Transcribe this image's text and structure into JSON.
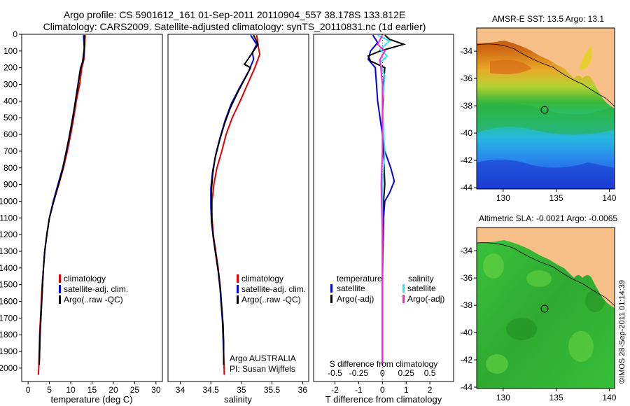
{
  "title_line1": "Argo profile: CS 5901612_161 01-Sep-2011 20110904_557 38.178S 133.812E",
  "title_line2": "Climatology: CARS2009. Satellite-adjusted climatology: synTS_20110831.nc (1d earlier)",
  "credit": "©IMOS 28-Sep-2011 01:14:39",
  "colors": {
    "climatology": "#e00000",
    "satellite": "#0000e0",
    "argo": "#000000",
    "sat_salinity": "#20e8ff",
    "argo_salinity": "#ff20d8",
    "land": "#f7c089"
  },
  "chart_data": [
    {
      "type": "line",
      "panel": "temperature",
      "xlabel": "temperature (deg C)",
      "xlim": [
        -1.5,
        31.5
      ],
      "xticks": [
        0,
        5,
        10,
        15,
        20,
        25,
        30
      ],
      "ylim": [
        0,
        2080
      ],
      "yticks": [
        0,
        100,
        200,
        300,
        400,
        500,
        600,
        700,
        800,
        900,
        1000,
        1100,
        1200,
        1300,
        1400,
        1500,
        1600,
        1700,
        1800,
        1900,
        2000
      ],
      "y_reversed": true,
      "legend": [
        "climatology",
        "satellite-adj. clim.",
        "Argo(..raw -QC)"
      ],
      "legend_position": "lower-center",
      "series": [
        {
          "name": "climatology",
          "color": "#e00000",
          "points": [
            [
              13.4,
              5
            ],
            [
              13.3,
              50
            ],
            [
              13.2,
              100
            ],
            [
              13.1,
              150
            ],
            [
              12.6,
              200
            ],
            [
              12.1,
              300
            ],
            [
              11.3,
              400
            ],
            [
              10.7,
              500
            ],
            [
              10.0,
              600
            ],
            [
              9.2,
              700
            ],
            [
              8.3,
              800
            ],
            [
              7.2,
              900
            ],
            [
              6.0,
              1000
            ],
            [
              5.0,
              1100
            ],
            [
              4.4,
              1200
            ],
            [
              3.9,
              1300
            ],
            [
              3.6,
              1400
            ],
            [
              3.3,
              1500
            ],
            [
              3.1,
              1600
            ],
            [
              2.9,
              1700
            ],
            [
              2.7,
              1800
            ],
            [
              2.6,
              1900
            ],
            [
              2.5,
              2000
            ],
            [
              2.4,
              2040
            ]
          ]
        },
        {
          "name": "satellite-adj. clim.",
          "color": "#0000e0",
          "points": [
            [
              13.0,
              5
            ],
            [
              13.1,
              50
            ],
            [
              13.2,
              100
            ],
            [
              12.9,
              160
            ],
            [
              12.3,
              200
            ],
            [
              11.7,
              300
            ],
            [
              11.1,
              400
            ],
            [
              10.5,
              500
            ],
            [
              9.8,
              600
            ],
            [
              9.0,
              700
            ],
            [
              8.1,
              800
            ],
            [
              7.0,
              900
            ],
            [
              5.9,
              1000
            ],
            [
              5.0,
              1100
            ],
            [
              4.4,
              1200
            ],
            [
              3.9,
              1300
            ],
            [
              3.6,
              1400
            ],
            [
              3.4,
              1500
            ],
            [
              3.2,
              1600
            ],
            [
              3.0,
              1700
            ],
            [
              2.8,
              1800
            ],
            [
              2.7,
              1900
            ],
            [
              2.6,
              1980
            ]
          ]
        },
        {
          "name": "Argo(..raw -QC)",
          "color": "#000000",
          "points": [
            [
              13.2,
              5
            ],
            [
              13.3,
              60
            ],
            [
              13.0,
              120
            ],
            [
              12.8,
              160
            ],
            [
              12.2,
              220
            ],
            [
              11.6,
              320
            ],
            [
              11.0,
              420
            ],
            [
              10.3,
              520
            ],
            [
              9.6,
              620
            ],
            [
              8.8,
              720
            ],
            [
              8.0,
              820
            ],
            [
              6.9,
              920
            ],
            [
              5.8,
              1020
            ],
            [
              5.0,
              1100
            ],
            [
              4.4,
              1200
            ],
            [
              3.9,
              1300
            ],
            [
              3.6,
              1400
            ],
            [
              3.4,
              1500
            ],
            [
              3.2,
              1600
            ],
            [
              3.0,
              1700
            ],
            [
              2.8,
              1800
            ],
            [
              2.7,
              1900
            ],
            [
              2.6,
              1980
            ]
          ]
        }
      ]
    },
    {
      "type": "line",
      "panel": "salinity",
      "xlabel": "salinity",
      "xlim": [
        33.8,
        36.1
      ],
      "xticks": [
        34,
        34.5,
        35,
        35.5,
        36
      ],
      "ylim": [
        0,
        2080
      ],
      "y_reversed": true,
      "legend": [
        "climatology",
        "satellite-adj. clim.",
        "Argo(..raw -QC)"
      ],
      "legend_position": "lower-right",
      "annotation": [
        "Argo AUSTRALIA",
        "PI: Susan Wijffels"
      ],
      "series": [
        {
          "name": "climatology",
          "color": "#e00000",
          "points": [
            [
              35.25,
              5
            ],
            [
              35.28,
              80
            ],
            [
              35.3,
              120
            ],
            [
              35.22,
              200
            ],
            [
              35.1,
              300
            ],
            [
              34.98,
              400
            ],
            [
              34.85,
              500
            ],
            [
              34.75,
              600
            ],
            [
              34.68,
              700
            ],
            [
              34.6,
              800
            ],
            [
              34.55,
              900
            ],
            [
              34.52,
              1000
            ],
            [
              34.52,
              1100
            ],
            [
              34.54,
              1200
            ],
            [
              34.58,
              1300
            ],
            [
              34.62,
              1400
            ],
            [
              34.65,
              1500
            ],
            [
              34.67,
              1600
            ],
            [
              34.69,
              1700
            ],
            [
              34.7,
              1800
            ],
            [
              34.71,
              1900
            ],
            [
              34.72,
              2040
            ]
          ]
        },
        {
          "name": "satellite-adj. clim.",
          "color": "#0000e0",
          "points": [
            [
              35.15,
              5
            ],
            [
              35.25,
              60
            ],
            [
              35.18,
              110
            ],
            [
              35.2,
              150
            ],
            [
              35.12,
              220
            ],
            [
              34.97,
              320
            ],
            [
              34.83,
              420
            ],
            [
              34.73,
              520
            ],
            [
              34.65,
              620
            ],
            [
              34.58,
              720
            ],
            [
              34.53,
              820
            ],
            [
              34.5,
              920
            ],
            [
              34.5,
              1020
            ],
            [
              34.51,
              1120
            ],
            [
              34.54,
              1220
            ],
            [
              34.58,
              1320
            ],
            [
              34.62,
              1420
            ],
            [
              34.65,
              1520
            ],
            [
              34.67,
              1620
            ],
            [
              34.69,
              1720
            ],
            [
              34.7,
              1820
            ],
            [
              34.71,
              1920
            ],
            [
              34.71,
              1980
            ]
          ]
        },
        {
          "name": "Argo(..raw -QC)",
          "color": "#000000",
          "points": [
            [
              35.2,
              5
            ],
            [
              35.27,
              60
            ],
            [
              35.2,
              100
            ],
            [
              35.05,
              180
            ],
            [
              35.15,
              200
            ],
            [
              35.08,
              250
            ],
            [
              34.95,
              340
            ],
            [
              34.82,
              440
            ],
            [
              34.72,
              540
            ],
            [
              34.64,
              640
            ],
            [
              34.57,
              740
            ],
            [
              34.53,
              840
            ],
            [
              34.51,
              940
            ],
            [
              34.51,
              1040
            ],
            [
              34.52,
              1140
            ],
            [
              34.55,
              1240
            ],
            [
              34.59,
              1340
            ],
            [
              34.63,
              1440
            ],
            [
              34.66,
              1540
            ],
            [
              34.68,
              1640
            ],
            [
              34.7,
              1740
            ],
            [
              34.71,
              1840
            ],
            [
              34.71,
              1940
            ],
            [
              34.71,
              1980
            ]
          ]
        }
      ]
    },
    {
      "type": "line",
      "panel": "difference",
      "xlabel_bottom": "T difference from climatology",
      "xlabel_top": "S difference from climatology",
      "xlim": [
        -2.9,
        3.0
      ],
      "xticks_bottom": [
        -2,
        -1,
        0,
        1,
        2
      ],
      "xticks_top": [
        {
          "label": "-0.5",
          "pos": -2
        },
        {
          "label": "-0.25",
          "pos": -1
        },
        {
          "label": "0",
          "pos": 0
        },
        {
          "label": "0.25",
          "pos": 1
        },
        {
          "label": "0.5",
          "pos": 2
        }
      ],
      "ylim": [
        0,
        2080
      ],
      "y_reversed": true,
      "legend_headers": [
        "temperature",
        "salinity"
      ],
      "legend": [
        "satellite",
        "Argo(-adj)",
        "satellite",
        "Argo(-adj)"
      ],
      "series": [
        {
          "name": "satellite",
          "quantity": "temperature",
          "color": "#0000e0",
          "points": [
            [
              -0.4,
              5
            ],
            [
              -0.2,
              50
            ],
            [
              -0.5,
              100
            ],
            [
              -0.6,
              150
            ],
            [
              -0.3,
              200
            ],
            [
              -0.25,
              300
            ],
            [
              -0.2,
              400
            ],
            [
              -0.1,
              500
            ],
            [
              0.0,
              600
            ],
            [
              0.1,
              700
            ],
            [
              0.35,
              800
            ],
            [
              0.5,
              880
            ],
            [
              0.3,
              950
            ],
            [
              0.1,
              1000
            ],
            [
              0.05,
              1100
            ],
            [
              0.02,
              1300
            ],
            [
              0.0,
              1500
            ],
            [
              0.0,
              1700
            ],
            [
              0.0,
              1980
            ]
          ]
        },
        {
          "name": "Argo(-adj)",
          "quantity": "temperature",
          "color": "#000000",
          "points": [
            [
              0.1,
              5
            ],
            [
              0.3,
              30
            ],
            [
              0.9,
              60
            ],
            [
              0.4,
              80
            ],
            [
              -0.1,
              100
            ],
            [
              -0.6,
              130
            ],
            [
              -0.5,
              160
            ],
            [
              0.1,
              200
            ],
            [
              0.05,
              300
            ],
            [
              0.0,
              500
            ],
            [
              0.05,
              700
            ],
            [
              0.1,
              900
            ],
            [
              0.0,
              1100
            ],
            [
              0.0,
              1500
            ],
            [
              0.0,
              1980
            ]
          ]
        },
        {
          "name": "satellite",
          "quantity": "salinity",
          "color": "#20e8ff",
          "points": [
            [
              -0.2,
              5
            ],
            [
              0.3,
              40
            ],
            [
              -0.1,
              90
            ],
            [
              0.2,
              130
            ],
            [
              -0.1,
              170
            ],
            [
              0.1,
              250
            ],
            [
              0.0,
              400
            ],
            [
              0.05,
              600
            ],
            [
              0.1,
              700
            ],
            [
              0.0,
              900
            ],
            [
              0.0,
              1200
            ],
            [
              0.0,
              1600
            ],
            [
              0.0,
              1980
            ]
          ]
        },
        {
          "name": "Argo(-adj)",
          "quantity": "salinity",
          "color": "#ff20d8",
          "points": [
            [
              0.0,
              5
            ],
            [
              -0.2,
              60
            ],
            [
              0.1,
              100
            ],
            [
              -0.1,
              150
            ],
            [
              0.0,
              300
            ],
            [
              0.0,
              700
            ],
            [
              -0.05,
              900
            ],
            [
              0.0,
              1200
            ],
            [
              0.0,
              1600
            ],
            [
              0.0,
              1980
            ]
          ]
        }
      ]
    },
    {
      "type": "heatmap",
      "panel": "sst_map",
      "title": "AMSR-E SST: 13.5 Argo: 13.1",
      "xlim": [
        127.5,
        140.5
      ],
      "ylim": [
        -44.1,
        -32.3
      ],
      "xticks": [
        130,
        135,
        140
      ],
      "yticks": [
        -34,
        -36,
        -38,
        -40,
        -42,
        -44
      ],
      "marker": {
        "lon": 133.8,
        "lat": -38.2
      }
    },
    {
      "type": "heatmap",
      "panel": "sla_map",
      "title": "Altimetric SLA: -0.0021 Argo: -0.0065",
      "xlim": [
        127.5,
        140.5
      ],
      "ylim": [
        -44.1,
        -32.3
      ],
      "xticks": [
        130,
        135,
        140
      ],
      "yticks": [
        -34,
        -36,
        -38,
        -40,
        -42,
        -44
      ],
      "marker": {
        "lon": 133.8,
        "lat": -38.2
      }
    }
  ]
}
